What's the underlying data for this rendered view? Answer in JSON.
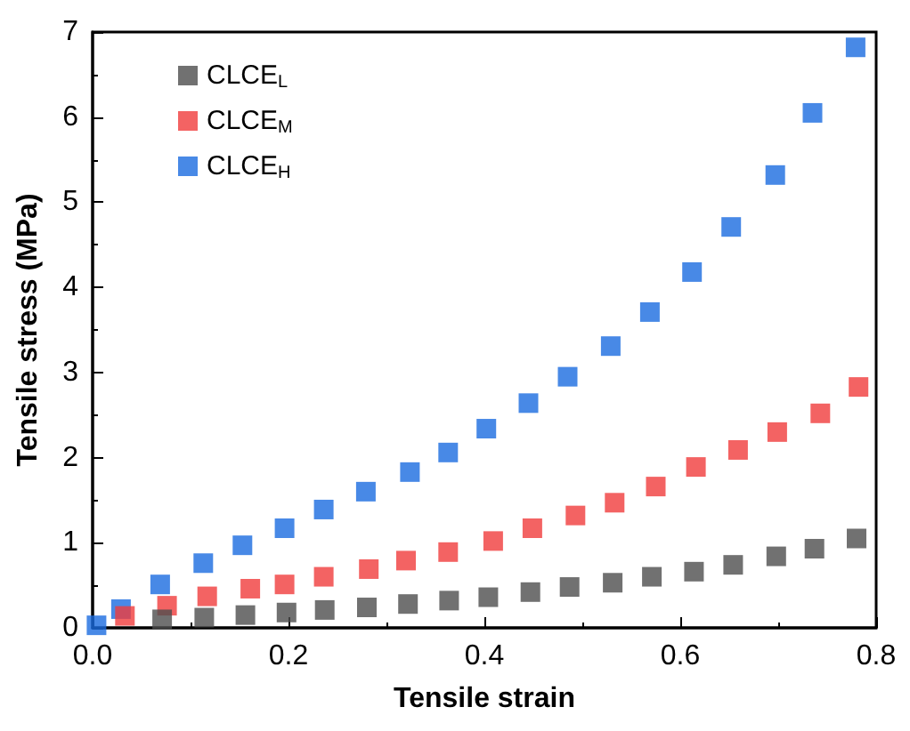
{
  "chart_data": {
    "type": "scatter",
    "xlabel": "Tensile strain",
    "ylabel": "Tensile stress (MPa)",
    "xlim": [
      0,
      0.8
    ],
    "xticks": [
      {
        "value": 0,
        "label": "0.0"
      },
      0.2,
      0.4,
      0.6,
      0.8
    ],
    "ylim": [
      0,
      7
    ],
    "yticks": [
      0,
      1,
      2,
      3,
      4,
      5,
      6,
      7
    ],
    "grid": false,
    "legend": "top left",
    "marker": "square",
    "series": [
      {
        "name": "CLCE$_{L}$",
        "color": "#4d4d4d",
        "x": [
          0.071,
          0.114,
          0.156,
          0.198,
          0.237,
          0.28,
          0.322,
          0.364,
          0.404,
          0.447,
          0.487,
          0.531,
          0.571,
          0.614,
          0.654,
          0.698,
          0.737,
          0.78
        ],
        "values": [
          0.1,
          0.12,
          0.15,
          0.18,
          0.21,
          0.24,
          0.28,
          0.32,
          0.36,
          0.42,
          0.48,
          0.53,
          0.6,
          0.66,
          0.74,
          0.84,
          0.93,
          1.05
        ]
      },
      {
        "name": "CLCE$_{M}$",
        "color": "#f03c3c",
        "x": [
          0.033,
          0.076,
          0.117,
          0.161,
          0.196,
          0.236,
          0.282,
          0.32,
          0.363,
          0.409,
          0.449,
          0.493,
          0.533,
          0.575,
          0.616,
          0.659,
          0.699,
          0.743,
          0.782
        ],
        "values": [
          0.14,
          0.26,
          0.37,
          0.46,
          0.51,
          0.6,
          0.69,
          0.79,
          0.89,
          1.02,
          1.17,
          1.32,
          1.47,
          1.66,
          1.89,
          2.09,
          2.3,
          2.52,
          2.83
        ]
      },
      {
        "name": "CLCE$_{H}$",
        "color": "#1a6ce0",
        "x": [
          0.004,
          0.029,
          0.069,
          0.113,
          0.153,
          0.196,
          0.236,
          0.279,
          0.324,
          0.363,
          0.402,
          0.445,
          0.485,
          0.529,
          0.569,
          0.612,
          0.652,
          0.697,
          0.735,
          0.779
        ],
        "values": [
          0.03,
          0.22,
          0.51,
          0.76,
          0.97,
          1.17,
          1.39,
          1.6,
          1.83,
          2.06,
          2.34,
          2.64,
          2.95,
          3.31,
          3.71,
          4.18,
          4.71,
          5.32,
          6.05,
          6.82
        ]
      }
    ]
  }
}
